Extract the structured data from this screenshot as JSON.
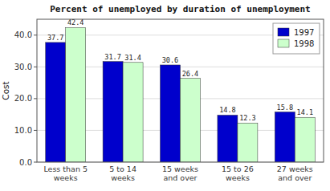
{
  "chart_data": {
    "type": "bar",
    "title": "Percent of unemployed by duration of unemployment",
    "ylabel": "Cost",
    "categories": [
      "Less than 5\nweeks",
      "5 to 14\nweeks",
      "15 weeks\nand over",
      "15 to 26\nweeks",
      "27 weeks\nand over"
    ],
    "series": [
      {
        "name": "1997",
        "color": "#0000CC",
        "values": [
          37.7,
          31.7,
          30.6,
          14.8,
          15.8
        ]
      },
      {
        "name": "1998",
        "color": "#CCFFCC",
        "values": [
          42.4,
          31.4,
          26.4,
          12.3,
          14.1
        ]
      }
    ],
    "ylim": [
      0,
      45
    ],
    "yticks": [
      {
        "value": 0,
        "label": "0.0"
      },
      {
        "value": 10,
        "label": "10.0"
      },
      {
        "value": 20,
        "label": "20.0"
      },
      {
        "value": 30,
        "label": "30.0"
      },
      {
        "value": 40,
        "label": "40.0"
      }
    ],
    "grid": true,
    "legend": "upper right",
    "data_labels": true
  }
}
